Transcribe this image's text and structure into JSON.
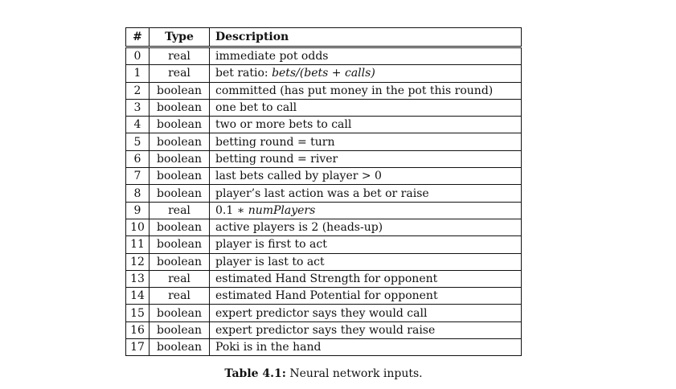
{
  "table": {
    "headers": {
      "num": "#",
      "type": "Type",
      "description": "Description"
    },
    "rows": [
      {
        "num": "0",
        "type": "real",
        "description": "immediate pot odds"
      },
      {
        "num": "1",
        "type": "real",
        "description": "bet ratio: ",
        "math": "bets/(bets + calls)"
      },
      {
        "num": "2",
        "type": "boolean",
        "description": "committed (has put money in the pot this round)"
      },
      {
        "num": "3",
        "type": "boolean",
        "description": "one bet to call"
      },
      {
        "num": "4",
        "type": "boolean",
        "description": "two or more bets to call"
      },
      {
        "num": "5",
        "type": "boolean",
        "description": "betting round = turn"
      },
      {
        "num": "6",
        "type": "boolean",
        "description": "betting round = river"
      },
      {
        "num": "7",
        "type": "boolean",
        "description": "last bets called by player > 0"
      },
      {
        "num": "8",
        "type": "boolean",
        "description": "player’s last action was a bet or raise"
      },
      {
        "num": "9",
        "type": "real",
        "description": "0.1 ∗ ",
        "math": "numPlayers"
      },
      {
        "num": "10",
        "type": "boolean",
        "description": "active players is 2 (heads-up)"
      },
      {
        "num": "11",
        "type": "boolean",
        "description": "player is first to act"
      },
      {
        "num": "12",
        "type": "boolean",
        "description": "player is last to act"
      },
      {
        "num": "13",
        "type": "real",
        "description": "estimated Hand Strength for opponent"
      },
      {
        "num": "14",
        "type": "real",
        "description": "estimated Hand Potential for opponent"
      },
      {
        "num": "15",
        "type": "boolean",
        "description": "expert predictor says they would call"
      },
      {
        "num": "16",
        "type": "boolean",
        "description": "expert predictor says they would raise"
      },
      {
        "num": "17",
        "type": "boolean",
        "description": "Poki is in the hand"
      }
    ]
  },
  "caption": {
    "label": "Table 4.1:",
    "text": " Neural network inputs."
  }
}
